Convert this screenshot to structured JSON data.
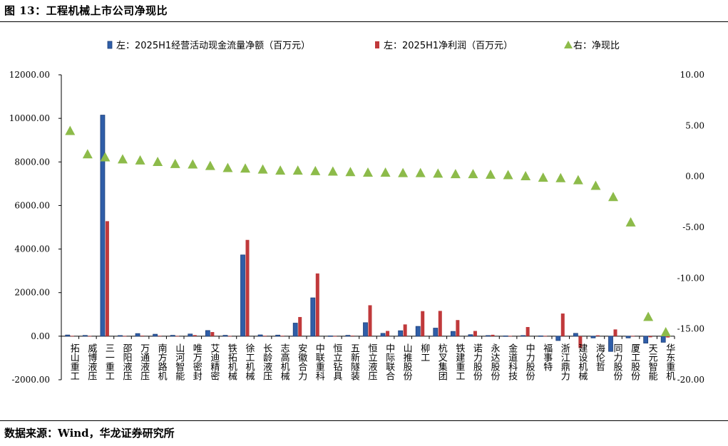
{
  "figure_title": "图 13：工程机械上市公司净现比",
  "source_note": "数据来源：Wind，华龙证券研究所",
  "chart_data": {
    "type": "bar",
    "categories": [
      "拓山重工",
      "威博液压",
      "三一重工",
      "邵阳液压",
      "万通液压",
      "南方路机",
      "山河智能",
      "唯万密封",
      "艾迪精密",
      "铁拓机械",
      "徐工机械",
      "长龄液压",
      "志高机械",
      "安徽合力",
      "中联重科",
      "恒立钻具",
      "五新隧装",
      "恒立液压",
      "中际联合",
      "山推股份",
      "柳工",
      "杭叉集团",
      "铁建重工",
      "诺力股份",
      "永达股份",
      "金道科技",
      "中力股份",
      "福事特",
      "浙江鼎力",
      "建设机械",
      "海伦哲",
      "同力股份",
      "厦工股份",
      "天元智能",
      "华东重机"
    ],
    "series": [
      {
        "name": "左：2025H1经营活动现金流量净额（百万元）",
        "axis": "left",
        "color": "#2f5ea8",
        "values": [
          55,
          35,
          10150,
          30,
          120,
          90,
          40,
          100,
          260,
          40,
          3730,
          60,
          50,
          600,
          1760,
          15,
          40,
          620,
          130,
          250,
          450,
          370,
          220,
          70,
          30,
          15,
          30,
          15,
          -200,
          130,
          -80,
          -700,
          -80,
          -320,
          -280
        ]
      },
      {
        "name": "左：2025H1净利润（百万元）",
        "axis": "left",
        "color": "#c0393b",
        "values": [
          15,
          10,
          5280,
          10,
          25,
          20,
          10,
          50,
          190,
          10,
          4420,
          20,
          20,
          880,
          2880,
          5,
          25,
          1420,
          240,
          540,
          1150,
          1160,
          740,
          240,
          65,
          15,
          420,
          15,
          1040,
          -540,
          40,
          310,
          15,
          -50,
          -60
        ]
      },
      {
        "name": "右：净现比",
        "axis": "right",
        "color": "#8dbb4a",
        "marker": "triangle",
        "values": [
          4.5,
          2.2,
          1.9,
          1.7,
          1.6,
          1.45,
          1.25,
          1.2,
          1.05,
          0.85,
          0.8,
          0.7,
          0.6,
          0.6,
          0.55,
          0.5,
          0.45,
          0.4,
          0.4,
          0.35,
          0.35,
          0.3,
          0.25,
          0.25,
          0.2,
          0.15,
          0.05,
          -0.1,
          -0.15,
          -0.35,
          -0.9,
          -2.0,
          -4.5,
          -13.8,
          -15.3
        ]
      }
    ],
    "y_left": {
      "lim": [
        -2000,
        12000
      ],
      "ticks": [
        "-2000.00",
        "0.00",
        "2000.00",
        "4000.00",
        "6000.00",
        "8000.00",
        "10000.00",
        "12000.00"
      ],
      "tick_values": [
        -2000,
        0,
        2000,
        4000,
        6000,
        8000,
        10000,
        12000
      ]
    },
    "y_right": {
      "lim": [
        -20,
        10
      ],
      "ticks": [
        "-20.00",
        "-15.00",
        "-10.00",
        "-5.00",
        "0.00",
        "5.00",
        "10.00"
      ],
      "tick_values": [
        -20,
        -15,
        -10,
        -5,
        0,
        5,
        10
      ]
    },
    "legend_position": "top",
    "grid": false
  }
}
